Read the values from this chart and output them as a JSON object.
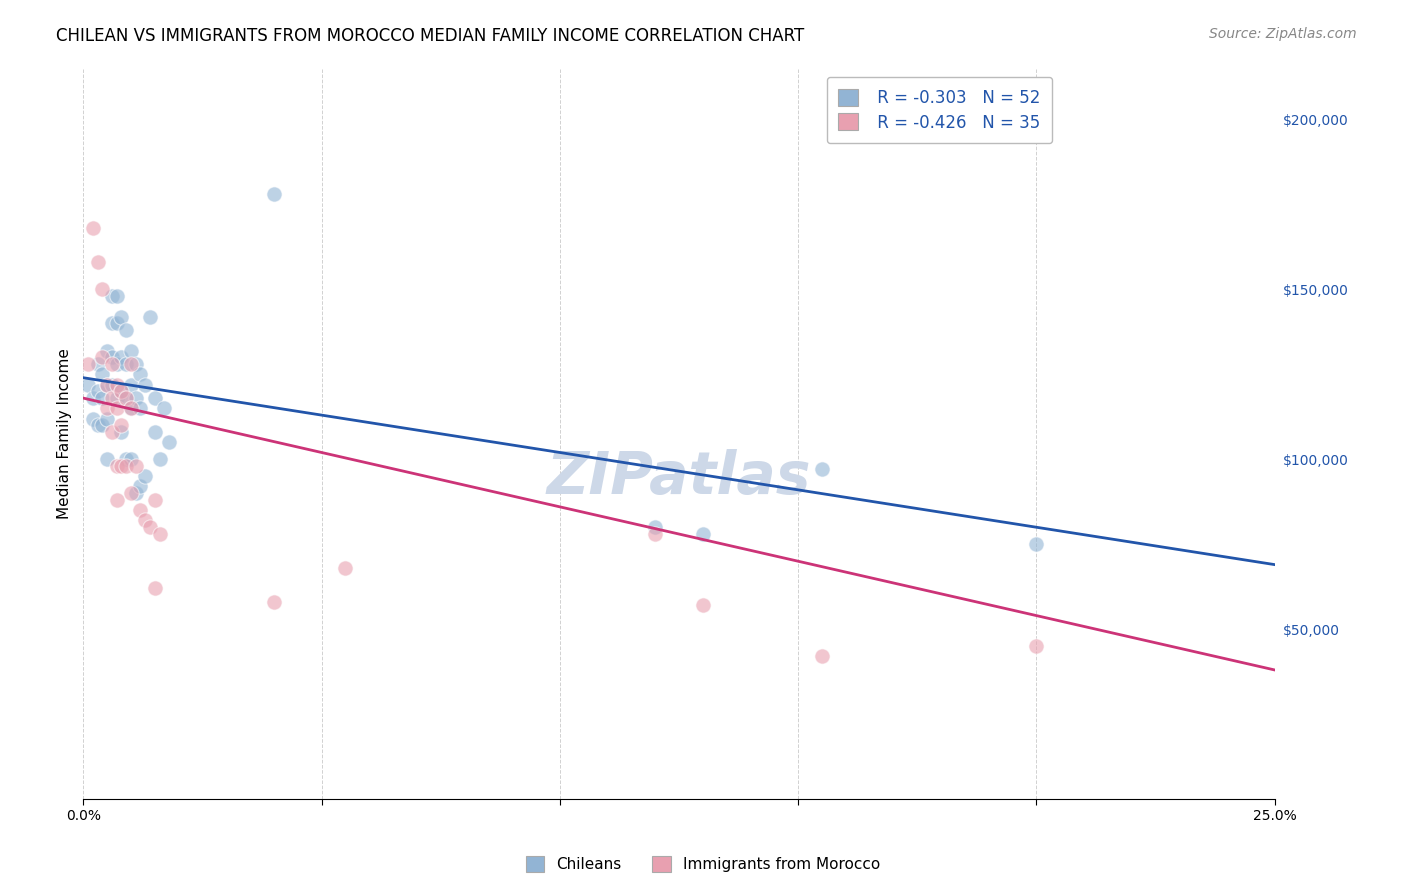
{
  "title": "CHILEAN VS IMMIGRANTS FROM MOROCCO MEDIAN FAMILY INCOME CORRELATION CHART",
  "source": "Source: ZipAtlas.com",
  "ylabel": "Median Family Income",
  "watermark": "ZIPatlas",
  "legend_blue_r": "R = -0.303",
  "legend_blue_n": "N = 52",
  "legend_pink_r": "R = -0.426",
  "legend_pink_n": "N = 35",
  "yticks": [
    0,
    50000,
    100000,
    150000,
    200000
  ],
  "ytick_labels": [
    "",
    "$50,000",
    "$100,000",
    "$150,000",
    "$200,000"
  ],
  "xlim": [
    0.0,
    0.25
  ],
  "ylim": [
    0,
    215000
  ],
  "blue_color": "#92b4d4",
  "pink_color": "#e8a0b0",
  "blue_line_color": "#2255aa",
  "pink_line_color": "#cc3377",
  "blue_scatter": [
    [
      0.001,
      122000
    ],
    [
      0.002,
      118000
    ],
    [
      0.002,
      112000
    ],
    [
      0.003,
      128000
    ],
    [
      0.003,
      120000
    ],
    [
      0.003,
      110000
    ],
    [
      0.004,
      125000
    ],
    [
      0.004,
      118000
    ],
    [
      0.004,
      110000
    ],
    [
      0.005,
      132000
    ],
    [
      0.005,
      122000
    ],
    [
      0.005,
      112000
    ],
    [
      0.005,
      100000
    ],
    [
      0.006,
      148000
    ],
    [
      0.006,
      140000
    ],
    [
      0.006,
      130000
    ],
    [
      0.006,
      122000
    ],
    [
      0.007,
      148000
    ],
    [
      0.007,
      140000
    ],
    [
      0.007,
      128000
    ],
    [
      0.007,
      118000
    ],
    [
      0.008,
      142000
    ],
    [
      0.008,
      130000
    ],
    [
      0.008,
      120000
    ],
    [
      0.008,
      108000
    ],
    [
      0.009,
      138000
    ],
    [
      0.009,
      128000
    ],
    [
      0.009,
      118000
    ],
    [
      0.009,
      100000
    ],
    [
      0.01,
      132000
    ],
    [
      0.01,
      122000
    ],
    [
      0.01,
      115000
    ],
    [
      0.01,
      100000
    ],
    [
      0.011,
      128000
    ],
    [
      0.011,
      118000
    ],
    [
      0.011,
      90000
    ],
    [
      0.012,
      125000
    ],
    [
      0.012,
      115000
    ],
    [
      0.012,
      92000
    ],
    [
      0.013,
      122000
    ],
    [
      0.013,
      95000
    ],
    [
      0.014,
      142000
    ],
    [
      0.015,
      118000
    ],
    [
      0.015,
      108000
    ],
    [
      0.016,
      100000
    ],
    [
      0.017,
      115000
    ],
    [
      0.018,
      105000
    ],
    [
      0.04,
      178000
    ],
    [
      0.12,
      80000
    ],
    [
      0.13,
      78000
    ],
    [
      0.155,
      97000
    ],
    [
      0.2,
      75000
    ]
  ],
  "pink_scatter": [
    [
      0.001,
      128000
    ],
    [
      0.002,
      168000
    ],
    [
      0.003,
      158000
    ],
    [
      0.004,
      150000
    ],
    [
      0.004,
      130000
    ],
    [
      0.005,
      122000
    ],
    [
      0.005,
      115000
    ],
    [
      0.006,
      128000
    ],
    [
      0.006,
      118000
    ],
    [
      0.006,
      108000
    ],
    [
      0.007,
      122000
    ],
    [
      0.007,
      115000
    ],
    [
      0.007,
      98000
    ],
    [
      0.007,
      88000
    ],
    [
      0.008,
      120000
    ],
    [
      0.008,
      110000
    ],
    [
      0.008,
      98000
    ],
    [
      0.009,
      118000
    ],
    [
      0.009,
      98000
    ],
    [
      0.01,
      128000
    ],
    [
      0.01,
      115000
    ],
    [
      0.01,
      90000
    ],
    [
      0.011,
      98000
    ],
    [
      0.012,
      85000
    ],
    [
      0.013,
      82000
    ],
    [
      0.014,
      80000
    ],
    [
      0.015,
      88000
    ],
    [
      0.016,
      78000
    ],
    [
      0.04,
      58000
    ],
    [
      0.055,
      68000
    ],
    [
      0.12,
      78000
    ],
    [
      0.13,
      57000
    ],
    [
      0.155,
      42000
    ],
    [
      0.2,
      45000
    ],
    [
      0.015,
      62000
    ]
  ],
  "background_color": "#ffffff",
  "plot_bg_color": "#ffffff",
  "grid_color": "#cccccc",
  "title_fontsize": 12,
  "axis_label_fontsize": 11,
  "tick_fontsize": 10,
  "source_fontsize": 10,
  "watermark_fontsize": 42,
  "watermark_color": "#cdd8e8",
  "marker_size": 120,
  "blue_intercept": 124000,
  "blue_slope": -220000,
  "pink_intercept": 118000,
  "pink_slope": -320000
}
